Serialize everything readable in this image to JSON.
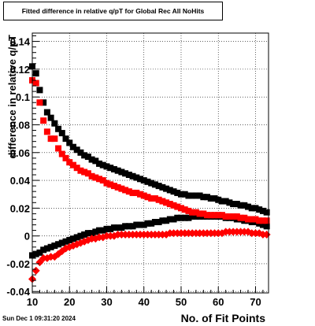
{
  "chart_data": {
    "type": "scatter",
    "title": "Fitted difference in relative q/pT for Global Rec All NoHits",
    "xlabel": "No. of Fit Points",
    "ylabel": "difference in relative q/pT",
    "xlim": [
      10,
      73.5
    ],
    "ylim": [
      -0.041,
      0.146
    ],
    "x_ticks": [
      10,
      20,
      30,
      40,
      50,
      60,
      70
    ],
    "y_ticks": [
      -0.04,
      -0.02,
      0,
      0.02,
      0.04,
      0.06,
      0.08,
      0.1,
      0.12,
      0.14
    ],
    "y_tick_labels": [
      "-0.04",
      "-0.02",
      "0",
      "0.02",
      "0.04",
      "0.06",
      "0.08",
      "0.1",
      "0.12",
      "0.14"
    ],
    "grid": true,
    "series": [
      {
        "color": "#000000",
        "marker": "square",
        "x": [
          10,
          11,
          12,
          13,
          14,
          15,
          16,
          17,
          18,
          19,
          20,
          21,
          22,
          23,
          24,
          25,
          26,
          27,
          28,
          29,
          30,
          31,
          32,
          33,
          34,
          35,
          36,
          37,
          38,
          39,
          40,
          41,
          42,
          43,
          44,
          45,
          46,
          47,
          48,
          49,
          50,
          51,
          52,
          53,
          54,
          55,
          56,
          57,
          58,
          59,
          60,
          61,
          62,
          63,
          64,
          65,
          66,
          67,
          68,
          69,
          70,
          71,
          72,
          73
        ],
        "y": [
          0.122,
          0.117,
          0.105,
          0.096,
          0.089,
          0.085,
          0.081,
          0.077,
          0.074,
          0.07,
          0.067,
          0.064,
          0.062,
          0.06,
          0.058,
          0.057,
          0.055,
          0.054,
          0.052,
          0.051,
          0.05,
          0.049,
          0.048,
          0.047,
          0.046,
          0.045,
          0.044,
          0.043,
          0.042,
          0.041,
          0.04,
          0.039,
          0.038,
          0.037,
          0.036,
          0.035,
          0.034,
          0.033,
          0.032,
          0.031,
          0.03,
          0.03,
          0.029,
          0.029,
          0.029,
          0.029,
          0.028,
          0.028,
          0.027,
          0.027,
          0.026,
          0.025,
          0.025,
          0.024,
          0.023,
          0.023,
          0.022,
          0.022,
          0.021,
          0.02,
          0.02,
          0.019,
          0.018,
          0.017
        ]
      },
      {
        "color": "#000000",
        "marker": "square",
        "x": [
          10,
          11,
          12,
          13,
          14,
          15,
          16,
          17,
          18,
          19,
          20,
          21,
          22,
          23,
          24,
          25,
          26,
          27,
          28,
          29,
          30,
          31,
          32,
          33,
          34,
          35,
          36,
          37,
          38,
          39,
          40,
          41,
          42,
          43,
          44,
          45,
          46,
          47,
          48,
          49,
          50,
          51,
          52,
          53,
          54,
          55,
          56,
          57,
          58,
          59,
          60,
          61,
          62,
          63,
          64,
          65,
          66,
          67,
          68,
          69,
          70,
          71,
          72,
          73
        ],
        "y": [
          -0.014,
          -0.013,
          -0.012,
          -0.01,
          -0.009,
          -0.008,
          -0.007,
          -0.006,
          -0.005,
          -0.004,
          -0.003,
          -0.002,
          -0.001,
          0,
          0.001,
          0.002,
          0.002,
          0.003,
          0.004,
          0.004,
          0.005,
          0.005,
          0.006,
          0.006,
          0.006,
          0.007,
          0.007,
          0.007,
          0.008,
          0.008,
          0.008,
          0.009,
          0.009,
          0.01,
          0.01,
          0.011,
          0.011,
          0.012,
          0.012,
          0.013,
          0.013,
          0.013,
          0.013,
          0.014,
          0.014,
          0.014,
          0.014,
          0.014,
          0.014,
          0.014,
          0.014,
          0.014,
          0.013,
          0.013,
          0.013,
          0.012,
          0.012,
          0.011,
          0.011,
          0.01,
          0.01,
          0.009,
          0.008,
          0.007
        ]
      },
      {
        "color": "#ff0000",
        "marker": "square",
        "x": [
          10,
          11,
          12,
          13,
          14,
          15,
          16,
          17,
          18,
          19,
          20,
          21,
          22,
          23,
          24,
          25,
          26,
          27,
          28,
          29,
          30,
          31,
          32,
          33,
          34,
          35,
          36,
          37,
          38,
          39,
          40,
          41,
          42,
          43,
          44,
          45,
          46,
          47,
          48,
          49,
          50,
          51,
          52,
          53,
          54,
          55,
          56,
          57,
          58,
          59,
          60,
          61,
          62,
          63,
          64,
          65,
          66,
          67,
          68,
          69,
          70,
          71,
          72,
          73
        ],
        "y": [
          0.112,
          0.11,
          0.096,
          0.083,
          0.075,
          0.07,
          0.07,
          0.063,
          0.059,
          0.056,
          0.053,
          0.051,
          0.049,
          0.047,
          0.046,
          0.045,
          0.043,
          0.042,
          0.041,
          0.04,
          0.038,
          0.037,
          0.036,
          0.035,
          0.034,
          0.033,
          0.032,
          0.031,
          0.031,
          0.03,
          0.029,
          0.028,
          0.027,
          0.027,
          0.026,
          0.025,
          0.024,
          0.023,
          0.022,
          0.021,
          0.02,
          0.019,
          0.018,
          0.017,
          0.017,
          0.016,
          0.016,
          0.015,
          0.015,
          0.015,
          0.015,
          0.015,
          0.014,
          0.014,
          0.014,
          0.014,
          0.013,
          0.013,
          0.012,
          0.012,
          0.012,
          0.011,
          0.011,
          0.011
        ]
      },
      {
        "color": "#ff0000",
        "marker": "diamond",
        "x": [
          10,
          11,
          12,
          13,
          14,
          15,
          16,
          17,
          18,
          19,
          20,
          21,
          22,
          23,
          24,
          25,
          26,
          27,
          28,
          29,
          30,
          31,
          32,
          33,
          34,
          35,
          36,
          37,
          38,
          39,
          40,
          41,
          42,
          43,
          44,
          45,
          46,
          47,
          48,
          49,
          50,
          51,
          52,
          53,
          54,
          55,
          56,
          57,
          58,
          59,
          60,
          61,
          62,
          63,
          64,
          65,
          66,
          67,
          68,
          69,
          70,
          71,
          72,
          73
        ],
        "y": [
          -0.031,
          -0.025,
          -0.019,
          -0.016,
          -0.016,
          -0.015,
          -0.015,
          -0.013,
          -0.011,
          -0.009,
          -0.008,
          -0.007,
          -0.006,
          -0.005,
          -0.004,
          -0.003,
          -0.002,
          -0.002,
          -0.001,
          -0.001,
          0,
          0,
          0,
          0.001,
          0.001,
          0.001,
          0.001,
          0.001,
          0.001,
          0.001,
          0.001,
          0.001,
          0.001,
          0.001,
          0.001,
          0.001,
          0.001,
          0.002,
          0.002,
          0.002,
          0.002,
          0.002,
          0.002,
          0.002,
          0.002,
          0.002,
          0.002,
          0.002,
          0.002,
          0.002,
          0.002,
          0.002,
          0.003,
          0.003,
          0.003,
          0.003,
          0.003,
          0.003,
          0.003,
          0.002,
          0.002,
          0.002,
          0.001,
          0.001
        ]
      }
    ]
  },
  "timestamp": "Sun Dec  1 09:31:20 2024"
}
